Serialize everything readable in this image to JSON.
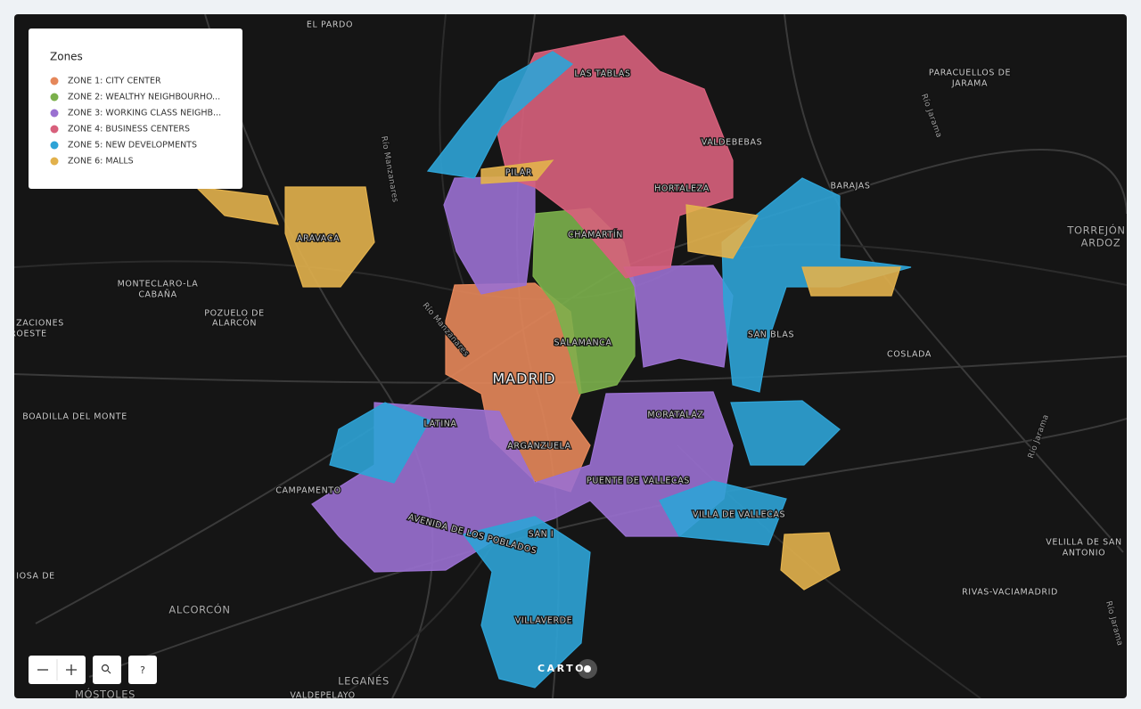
{
  "legend": {
    "title": "Zones",
    "items": [
      {
        "label": "ZONE 1: CITY CENTER",
        "color": "#e5875a"
      },
      {
        "label": "ZONE 2: WEALTHY NEIGHBOURHO...",
        "color": "#7bb04b"
      },
      {
        "label": "ZONE 3: WORKING CLASS NEIGHB...",
        "color": "#9a70d1"
      },
      {
        "label": "ZONE 4: BUSINESS CENTERS",
        "color": "#d8607c"
      },
      {
        "label": "ZONE 5: NEW DEVELOPMENTS",
        "color": "#2ea3d6"
      },
      {
        "label": "ZONE 6: MALLS",
        "color": "#e2b14c"
      }
    ]
  },
  "map_labels": [
    "EL PARDO",
    "LAS TABLAS",
    "PARACUELLOS DE",
    "JARAMA",
    "Río Jarama",
    "VALDEBEBAS",
    "Río Manzanares",
    "PILAR",
    "BARAJAS",
    "HORTALEZA",
    "CHAMARTÍN",
    "ARAVACA",
    "TORREJÓN",
    "ARDOZ",
    "MONTECLARO-LA",
    "CABAÑA",
    "POZUELO DE",
    "ALARCÓN",
    "Río Manzanares",
    "ZACIONES",
    "ROESTE",
    "SAN BLAS",
    "SALAMANCA",
    "COSLADA",
    "MADRID",
    "MORATALAZ",
    "BOADILLA DEL MONTE",
    "LATINA",
    "Río Jarama",
    "ARGANZUELA",
    "PUENTE DE VALLECAS",
    "CAMPAMENTO",
    "VILLA DE VALLECAS",
    "AVENIDA DE LOS POBLADOS",
    "SAN I",
    "VELILLA DE SAN",
    "ANTONIO",
    "IOSA DE",
    "RIVAS-VACIAMADRID",
    "ALCORCÓN",
    "VILLAVERDE",
    "Río Jarama",
    "MÓSTOLES",
    "LEGANÉS",
    "VALDEPELAYO"
  ],
  "controls": {
    "help": "?",
    "logo": "CARTO"
  }
}
